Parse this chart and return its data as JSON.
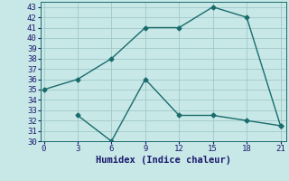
{
  "xlabel": "Humidex (Indice chaleur)",
  "background_color": "#c8e8e8",
  "line_color": "#1a6b6b",
  "x_line1": [
    0,
    3,
    6,
    9,
    12,
    15,
    18,
    21
  ],
  "y_line1": [
    35,
    36,
    38,
    41,
    41,
    43,
    42,
    31.5
  ],
  "x_line2": [
    3,
    6,
    9,
    12,
    15,
    18,
    21
  ],
  "y_line2": [
    32.5,
    30,
    36,
    32.5,
    32.5,
    32,
    31.5
  ],
  "xlim": [
    -0.3,
    21.5
  ],
  "ylim": [
    30,
    43.5
  ],
  "xticks": [
    0,
    3,
    6,
    9,
    12,
    15,
    18,
    21
  ],
  "yticks": [
    30,
    31,
    32,
    33,
    34,
    35,
    36,
    37,
    38,
    39,
    40,
    41,
    42,
    43
  ],
  "grid_color": "#a0c8c8",
  "marker": "D",
  "marker_size": 2.5,
  "line_width": 1.0,
  "xlabel_fontsize": 7.5,
  "tick_fontsize": 6.5
}
